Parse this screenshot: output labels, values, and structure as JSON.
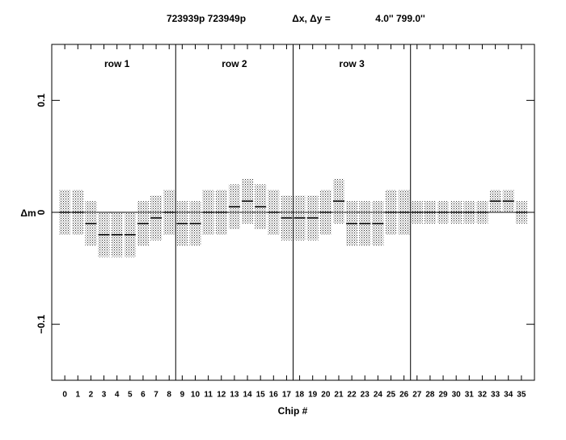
{
  "header": {
    "frames": "723939p   723949p",
    "offset_label": "Δx, Δy =",
    "offset_values": "4.0''   799.0''"
  },
  "chart_data": {
    "type": "scatter",
    "x_label": "Chip #",
    "y_label": "Δm",
    "x": [
      0,
      1,
      2,
      3,
      4,
      5,
      6,
      7,
      8,
      9,
      10,
      11,
      12,
      13,
      14,
      15,
      16,
      17,
      18,
      19,
      20,
      21,
      22,
      23,
      24,
      25,
      26,
      27,
      28,
      29,
      30,
      31,
      32,
      33,
      34,
      35
    ],
    "values": [
      0,
      0,
      -0.01,
      -0.02,
      -0.02,
      -0.02,
      -0.01,
      -0.005,
      0,
      -0.01,
      -0.01,
      0,
      0,
      0.005,
      0.01,
      0.005,
      0,
      -0.005,
      -0.005,
      -0.005,
      0,
      0.01,
      -0.01,
      -0.01,
      -0.01,
      0,
      0,
      0,
      0,
      0,
      0,
      0,
      0,
      0.01,
      0.01,
      0
    ],
    "spread": [
      0.02,
      0.02,
      0.02,
      0.02,
      0.02,
      0.02,
      0.02,
      0.02,
      0.02,
      0.02,
      0.02,
      0.02,
      0.02,
      0.02,
      0.02,
      0.02,
      0.02,
      0.02,
      0.02,
      0.02,
      0.02,
      0.02,
      0.02,
      0.02,
      0.02,
      0.02,
      0.02,
      0.01,
      0.01,
      0.01,
      0.01,
      0.01,
      0.01,
      0.01,
      0.01,
      0.01
    ],
    "color": "#000000",
    "xlim": [
      -1,
      36
    ],
    "ylim": [
      -0.15,
      0.15
    ],
    "xticks": [
      0,
      1,
      2,
      3,
      4,
      5,
      6,
      7,
      8,
      9,
      10,
      11,
      12,
      13,
      14,
      15,
      16,
      17,
      18,
      19,
      20,
      21,
      22,
      23,
      24,
      25,
      26,
      27,
      28,
      29,
      30,
      31,
      32,
      33,
      34,
      35
    ],
    "yticks": [
      {
        "value": -0.1,
        "label": "−0.1"
      },
      0,
      0.1
    ],
    "separators": [
      8.5,
      17.5,
      26.5
    ],
    "annotations": [
      {
        "text": "row  1",
        "x": 4,
        "y": 0.132
      },
      {
        "text": "row  2",
        "x": 13,
        "y": 0.132
      },
      {
        "text": "row  3",
        "x": 22,
        "y": 0.132
      }
    ]
  }
}
